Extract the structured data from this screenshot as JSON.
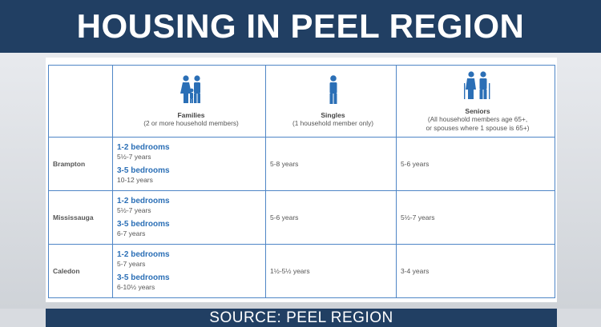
{
  "title": "HOUSING IN PEEL REGION",
  "source": "SOURCE: PEEL REGION",
  "colors": {
    "navy": "#213f63",
    "accent_blue": "#2b6fb6",
    "border_blue": "#4f86c6"
  },
  "columns": [
    {
      "icon": "family-icon",
      "title": "Families",
      "subtitle": "(2 or more household members)"
    },
    {
      "icon": "person-icon",
      "title": "Singles",
      "subtitle": "(1 household member only)"
    },
    {
      "icon": "seniors-icon",
      "title": "Seniors",
      "subtitle_line1": "(All household members age 65+,",
      "subtitle_line2": "or spouses where 1 spouse is 65+)"
    }
  ],
  "rows": [
    {
      "city": "Brampton",
      "families": [
        {
          "label": "1-2 bedrooms",
          "years": "5½-7 years"
        },
        {
          "label": "3-5 bedrooms",
          "years": "10-12 years"
        }
      ],
      "singles": "5-8 years",
      "seniors": "5-6 years"
    },
    {
      "city": "Mississauga",
      "families": [
        {
          "label": "1-2 bedrooms",
          "years": "5½-7 years"
        },
        {
          "label": "3-5 bedrooms",
          "years": "6-7 years"
        }
      ],
      "singles": "5-6 years",
      "seniors": "5½-7 years"
    },
    {
      "city": "Caledon",
      "families": [
        {
          "label": "1-2 bedrooms",
          "years": "5-7 years"
        },
        {
          "label": "3-5 bedrooms",
          "years": "6-10½ years"
        }
      ],
      "singles": "1½-5½ years",
      "seniors": "3-4 years"
    }
  ]
}
